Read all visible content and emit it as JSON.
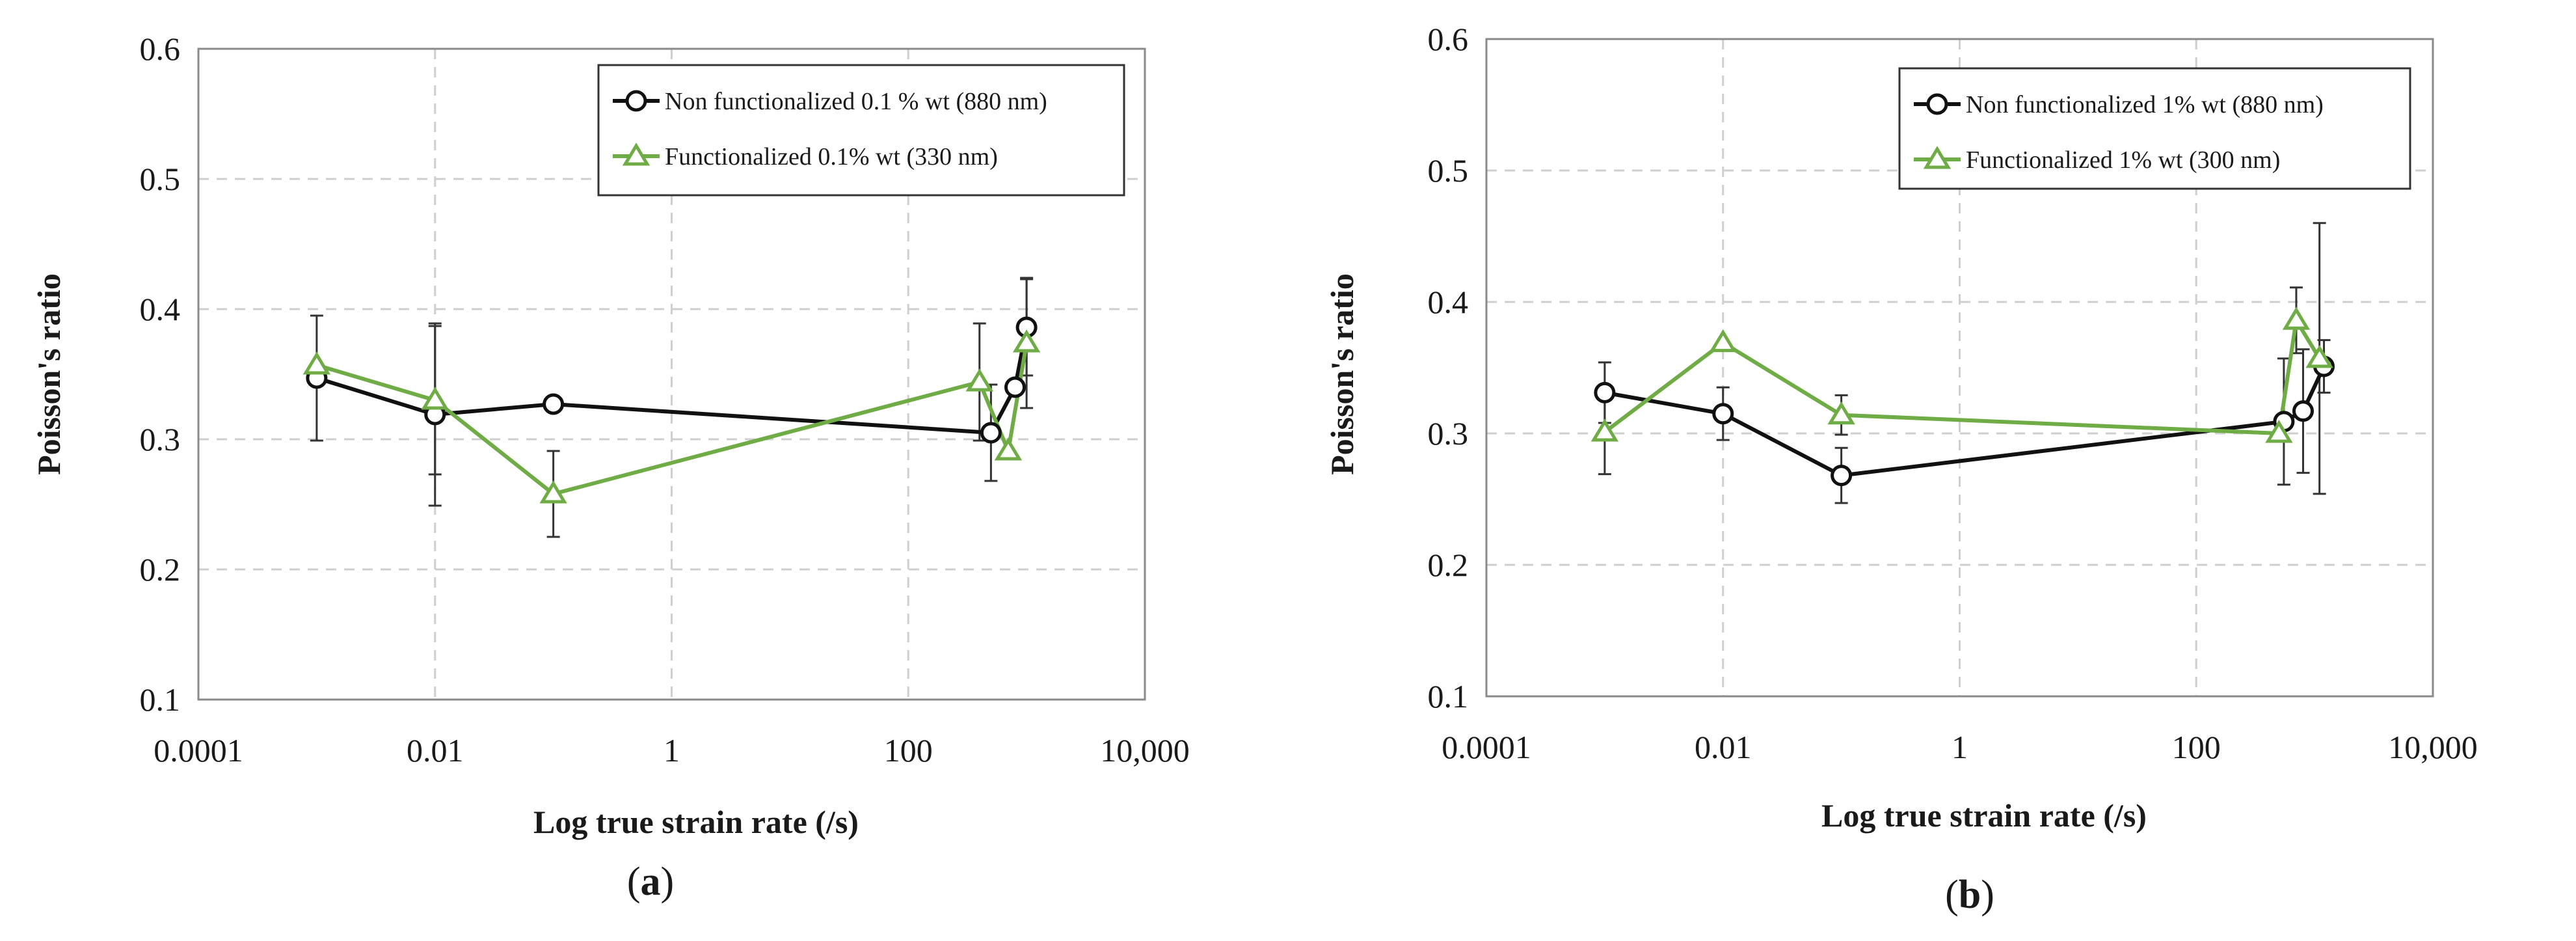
{
  "colors": {
    "series_black": "#111111",
    "series_green": "#6fac46"
  },
  "chart_data": [
    {
      "type": "line",
      "panel": "(a)",
      "panel_letter": "a",
      "xscale": "log",
      "xlim": [
        0.0001,
        10000
      ],
      "ylim": [
        0.1,
        0.6
      ],
      "xticks": [
        0.0001,
        0.01,
        1,
        100,
        10000
      ],
      "xtick_labels": [
        "0.0001",
        "0.01",
        "1",
        "100",
        "10,000"
      ],
      "yticks": [
        0.1,
        0.2,
        0.3,
        0.4,
        0.5,
        0.6
      ],
      "ytick_labels": [
        "0.1",
        "0.2",
        "0.3",
        "0.4",
        "0.5",
        "0.6"
      ],
      "xlabel": "Log true strain rate (/s)",
      "ylabel": "Poisson's ratio",
      "grid": true,
      "legend_position": "top-right",
      "series": [
        {
          "name": "Non functionalized 0.1 % wt (880 nm)",
          "marker": "circle",
          "color": "#111111",
          "x": [
            0.001,
            0.01,
            0.1,
            500,
            800,
            1000
          ],
          "y": [
            0.347,
            0.319,
            0.327,
            0.305,
            0.34,
            0.386
          ],
          "err": [
            0.048,
            0.07,
            0,
            0.037,
            0,
            0.037
          ]
        },
        {
          "name": "Functionalized 0.1% wt (330 nm)",
          "marker": "triangle",
          "color": "#6fac46",
          "x": [
            0.001,
            0.01,
            0.1,
            400,
            700,
            1000
          ],
          "y": [
            0.357,
            0.33,
            0.258,
            0.344,
            0.291,
            0.374
          ],
          "err": [
            0,
            0.057,
            0.033,
            0.045,
            0,
            0.05
          ]
        }
      ]
    },
    {
      "type": "line",
      "panel": "(b)",
      "panel_letter": "b",
      "xscale": "log",
      "xlim": [
        0.0001,
        10000
      ],
      "ylim": [
        0.1,
        0.6
      ],
      "xticks": [
        0.0001,
        0.01,
        1,
        100,
        10000
      ],
      "xtick_labels": [
        "0.0001",
        "0.01",
        "1",
        "100",
        "10,000"
      ],
      "yticks": [
        0.1,
        0.2,
        0.3,
        0.4,
        0.5,
        0.6
      ],
      "ytick_labels": [
        "0.1",
        "0.2",
        "0.3",
        "0.4",
        "0.5",
        "0.6"
      ],
      "xlabel": "Log true strain rate (/s)",
      "ylabel": "Poisson's ratio",
      "grid": true,
      "legend_position": "top-right",
      "series": [
        {
          "name": "Non functionalized 1% wt (880 nm)",
          "marker": "circle",
          "color": "#111111",
          "x": [
            0.001,
            0.01,
            0.1,
            550,
            800,
            1200
          ],
          "y": [
            0.331,
            0.315,
            0.268,
            0.309,
            0.317,
            0.351
          ],
          "err": [
            0.023,
            0.02,
            0.021,
            0.048,
            0.047,
            0.02
          ]
        },
        {
          "name": "Functionalized 1% wt (300 nm)",
          "marker": "triangle",
          "color": "#6fac46",
          "x": [
            0.001,
            0.01,
            0.1,
            500,
            700,
            1100
          ],
          "y": [
            0.301,
            0.369,
            0.314,
            0.3,
            0.386,
            0.357
          ],
          "err": [
            0.032,
            0,
            0.015,
            0,
            0.025,
            0.103
          ]
        }
      ]
    }
  ]
}
